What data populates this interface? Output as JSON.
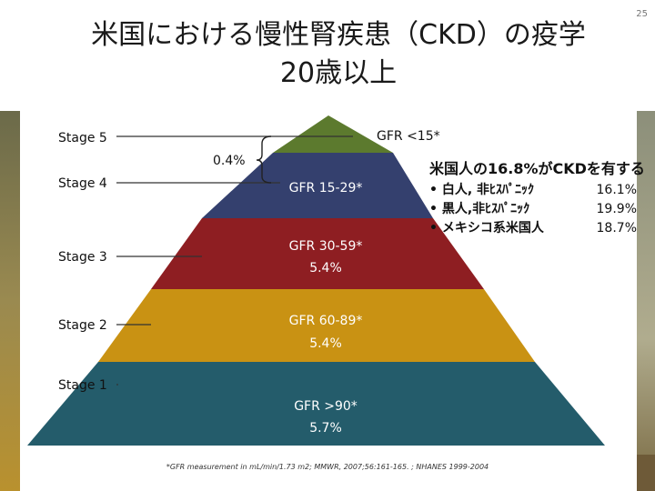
{
  "slide": {
    "page_number": "25",
    "title_line1": "米国における慢性腎疾患（CKD）の疫学",
    "title_line2": "20歳以上"
  },
  "stages": [
    {
      "label": "Stage 5",
      "gfr": "GFR <15*",
      "prevalence": "",
      "color": "#5c7a2e"
    },
    {
      "label": "Stage 4",
      "gfr": "GFR 15-29*",
      "prevalence": "",
      "color": "#34406e"
    },
    {
      "label": "Stage 3",
      "gfr": "GFR 30-59*",
      "prevalence": "5.4%",
      "color": "#8e1e22"
    },
    {
      "label": "Stage 2",
      "gfr": "GFR 60-89*",
      "prevalence": "5.4%",
      "color": "#c99213"
    },
    {
      "label": "Stage 1",
      "gfr": "GFR >90*",
      "prevalence": "5.7%",
      "color": "#245c6b"
    }
  ],
  "stage45_prevalence": "0.4%",
  "summary": {
    "heading": "米国人の16.8%がCKDを有する",
    "rows": [
      {
        "label": "• 白人, 非ﾋｽﾊﾟﾆｯｸ",
        "value": "16.1%"
      },
      {
        "label": "• 黒人,非ﾋｽﾊﾟﾆｯｸ",
        "value": "19.9%"
      },
      {
        "label": "• メキシコ系米国人",
        "value": "18.7%"
      }
    ]
  },
  "footnote": "*GFR measurement in mL/min/1.73 m2;   MMWR, 2007;56:161-165. ;   NHANES 1999-2004"
}
